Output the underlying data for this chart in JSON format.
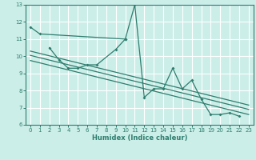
{
  "xlabel": "Humidex (Indice chaleur)",
  "background_color": "#cceee8",
  "grid_color": "#ffffff",
  "line_color": "#2e7d6e",
  "xlim": [
    -0.5,
    23.5
  ],
  "ylim": [
    6,
    13
  ],
  "yticks": [
    6,
    7,
    8,
    9,
    10,
    11,
    12,
    13
  ],
  "xticks": [
    0,
    1,
    2,
    3,
    4,
    5,
    6,
    7,
    8,
    9,
    10,
    11,
    12,
    13,
    14,
    15,
    16,
    17,
    18,
    19,
    20,
    21,
    22,
    23
  ],
  "series1_x": [
    0,
    1,
    10
  ],
  "series1_y": [
    11.7,
    11.3,
    11.0
  ],
  "series2_x": [
    2,
    3,
    4,
    5,
    6,
    7,
    9,
    10,
    11,
    12,
    13,
    14,
    15,
    16,
    17,
    18,
    19,
    20,
    21,
    22
  ],
  "series2_y": [
    10.5,
    9.8,
    9.3,
    9.3,
    9.5,
    9.5,
    10.4,
    11.0,
    13.0,
    7.6,
    8.1,
    8.1,
    9.3,
    8.1,
    8.6,
    7.5,
    6.6,
    6.6,
    6.7,
    6.5
  ],
  "trend_lines": [
    {
      "x": [
        0,
        23
      ],
      "y": [
        10.05,
        6.9
      ]
    },
    {
      "x": [
        0,
        23
      ],
      "y": [
        9.75,
        6.6
      ]
    },
    {
      "x": [
        0,
        23
      ],
      "y": [
        10.3,
        7.15
      ]
    }
  ]
}
